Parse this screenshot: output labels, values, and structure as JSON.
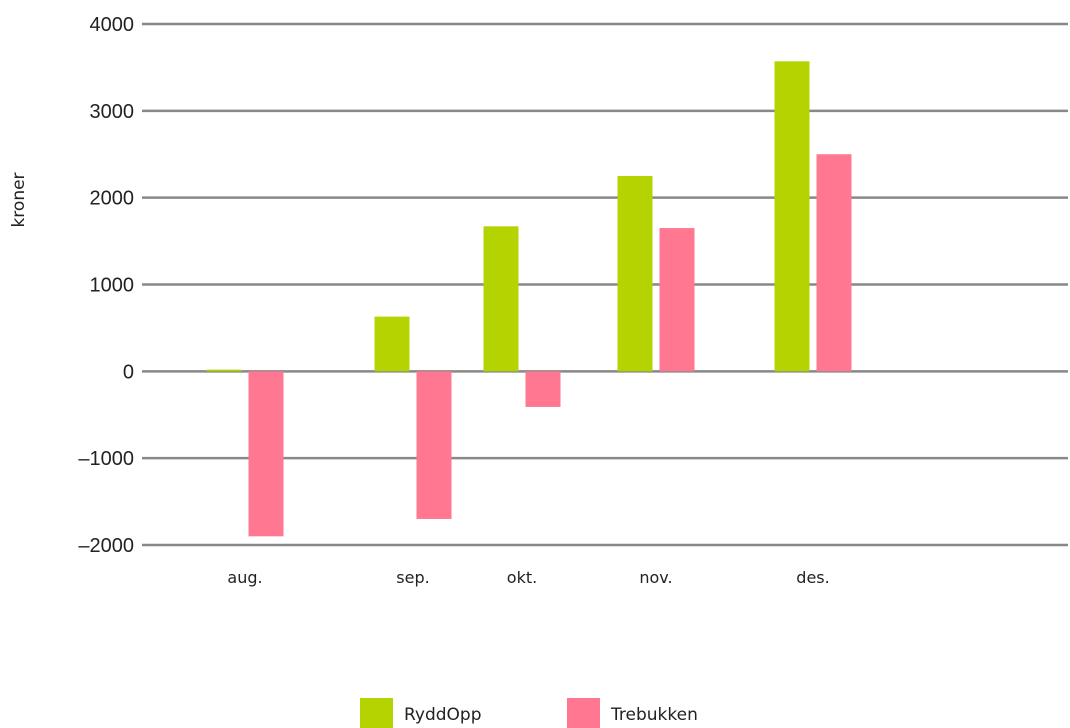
{
  "chart_data": {
    "type": "bar",
    "title": "",
    "xlabel": "",
    "ylabel": "kroner",
    "categories": [
      "aug.",
      "sep.",
      "okt.",
      "nov.",
      "des."
    ],
    "series": [
      {
        "name": "RyddOpp",
        "values": [
          20,
          630,
          1670,
          2250,
          3570
        ]
      },
      {
        "name": "Trebukken",
        "values": [
          -1900,
          -1700,
          -410,
          1650,
          2500
        ]
      }
    ],
    "ylim": [
      -2000,
      4000
    ],
    "yticks": [
      4000,
      3000,
      2000,
      1000,
      0,
      -1000,
      -2000
    ],
    "ytick_labels": [
      "4000",
      "3000",
      "2000",
      "1000",
      "0",
      "–1000",
      "–2000"
    ],
    "grid": true,
    "legend_position": "bottom-center",
    "colors": {
      "RyddOpp": "#b5d300",
      "Trebukken": "#ff7790",
      "grid": "#888888",
      "text": "#222222"
    }
  }
}
